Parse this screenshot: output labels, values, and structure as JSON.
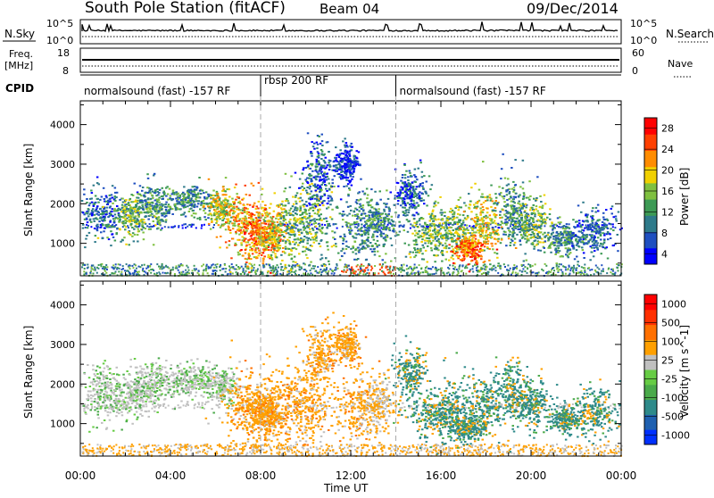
{
  "header": {
    "station": "South Pole Station (fitACF)",
    "beam": "Beam 04",
    "date": "09/Dec/2014"
  },
  "panels": {
    "nsky": {
      "left_label": "N.Sky",
      "left_ticks": [
        "10^5",
        "10^0"
      ],
      "right_label": "N.Search",
      "right_ticks": [
        "10^5",
        "10^0"
      ]
    },
    "freq": {
      "left_label_1": "Freq.",
      "left_label_2": "[MHz]",
      "left_ticks": [
        "18",
        "8"
      ],
      "right_label": "Nave",
      "right_ticks": [
        "60",
        "0"
      ]
    },
    "cpid": {
      "label": "CPID",
      "segments": [
        {
          "label": "normalsound (fast) -157 RF",
          "start_hour": 0,
          "end_hour": 8
        },
        {
          "label": "rbsp 200 RF",
          "start_hour": 8,
          "end_hour": 14
        },
        {
          "label": "normalsound (fast) -157 RF",
          "start_hour": 14,
          "end_hour": 24
        }
      ]
    }
  },
  "chart_data": [
    {
      "type": "heatmap",
      "name": "power",
      "ylabel": "Slant Range [km]",
      "ylim": [
        180,
        4600
      ],
      "yticks": [
        1000,
        2000,
        3000,
        4000
      ],
      "colorbar_label": "Power [dB]",
      "colorbar_ticks": [
        "28",
        "24",
        "20",
        "16",
        "12",
        "8",
        "4"
      ],
      "colorscale": [
        "#0000ff",
        "#1f4fc0",
        "#2e7a8a",
        "#3d9a55",
        "#7fc040",
        "#f0d000",
        "#ff8c00",
        "#ff4000",
        "#ff0000"
      ]
    },
    {
      "type": "heatmap",
      "name": "velocity",
      "ylabel": "Slant Range [km]",
      "ylim": [
        180,
        4600
      ],
      "yticks": [
        1000,
        2000,
        3000,
        4000
      ],
      "colorbar_label": "Velocity [m s^-1]",
      "colorbar_ticks": [
        "1000",
        "500",
        "100",
        "25",
        "-25",
        "-100",
        "-500",
        "-1000"
      ],
      "colorscale": [
        "#0030ff",
        "#1f60b0",
        "#2e8a8a",
        "#4aaa4a",
        "#66cc44",
        "#c0c0c0",
        "#ffa000",
        "#ff7000",
        "#ff3000",
        "#ff0000"
      ]
    }
  ],
  "time_axis": {
    "ticks": [
      "00:00",
      "04:00",
      "08:00",
      "12:00",
      "16:00",
      "20:00",
      "00:00"
    ],
    "label": "Time UT"
  }
}
